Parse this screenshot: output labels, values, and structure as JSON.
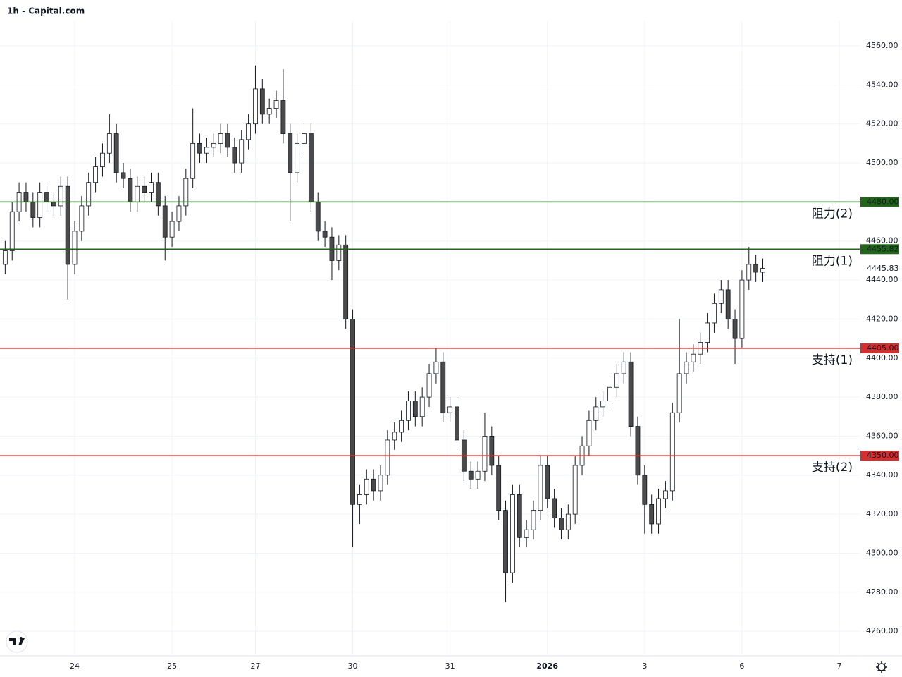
{
  "chart_data": {
    "type": "candlestick",
    "title": "1h - Capital.com",
    "categories": [
      null,
      null,
      null,
      null,
      null,
      null,
      null,
      null,
      null,
      null,
      "24",
      null,
      null,
      null,
      null,
      null,
      null,
      null,
      null,
      null,
      null,
      null,
      null,
      null,
      "25",
      null,
      null,
      null,
      null,
      null,
      null,
      null,
      null,
      null,
      null,
      null,
      "27",
      null,
      null,
      null,
      null,
      null,
      null,
      null,
      null,
      null,
      null,
      null,
      null,
      null,
      "30",
      null,
      null,
      null,
      null,
      null,
      null,
      null,
      null,
      null,
      null,
      null,
      null,
      null,
      "31",
      null,
      null,
      null,
      null,
      null,
      null,
      null,
      null,
      null,
      null,
      null,
      null,
      null,
      "2026",
      null,
      null,
      null,
      null,
      null,
      null,
      null,
      null,
      null,
      null,
      null,
      null,
      null,
      "3",
      null,
      null,
      null,
      null,
      null,
      null,
      null,
      null,
      null,
      null,
      null,
      null,
      null,
      "6",
      null,
      null,
      null,
      null,
      null,
      null,
      null,
      null,
      null,
      null,
      null,
      null,
      null,
      "7"
    ],
    "open": [
      4448,
      4455,
      4475,
      4485,
      4480,
      4472,
      4485,
      4480,
      4478,
      4488,
      4448,
      4465,
      4478,
      4490,
      4498,
      4505,
      4515,
      4495,
      4492,
      4480,
      4488,
      4485,
      4490,
      4478,
      4462,
      4470,
      4478,
      4492,
      4510,
      4505,
      4508,
      4510,
      4515,
      4508,
      4500,
      4512,
      4520,
      4538,
      4525,
      4528,
      4532,
      4515,
      4495,
      4510,
      4515,
      4480,
      4465,
      4462,
      4450,
      4458,
      4420,
      4325,
      4330,
      4338,
      4332,
      4340,
      4358,
      4362,
      4368,
      4378,
      4370,
      4380,
      4392,
      4398,
      4372,
      4375,
      4358,
      4342,
      4338,
      4342,
      4360,
      4345,
      4322,
      4290,
      4330,
      4308,
      4312,
      4322,
      4345,
      4328,
      4318,
      4312,
      4320,
      4345,
      4355,
      4368,
      4375,
      4378,
      4385,
      4392,
      4398,
      4365,
      4340,
      4325,
      4315,
      4328,
      4332,
      4372,
      4392,
      4398,
      4402,
      4408,
      4418,
      4428,
      4435,
      4420,
      4410,
      4440,
      4448,
      4444,
      null,
      null,
      null,
      null,
      null,
      null,
      null,
      null,
      null,
      null,
      null
    ],
    "high": [
      4460,
      4480,
      4490,
      4490,
      4485,
      4490,
      4490,
      4485,
      4493,
      4493,
      4470,
      4483,
      4495,
      4503,
      4510,
      4525,
      4520,
      4500,
      4497,
      4493,
      4493,
      4495,
      4495,
      4483,
      4475,
      4483,
      4497,
      4528,
      4515,
      4513,
      4515,
      4520,
      4520,
      4513,
      4517,
      4525,
      4550,
      4543,
      4533,
      4537,
      4548,
      4520,
      4515,
      4520,
      4520,
      4485,
      4470,
      4467,
      4463,
      4463,
      4425,
      4335,
      4343,
      4343,
      4345,
      4363,
      4367,
      4373,
      4383,
      4383,
      4385,
      4397,
      4405,
      4403,
      4380,
      4380,
      4363,
      4347,
      4347,
      4372,
      4365,
      4350,
      4327,
      4335,
      4335,
      4317,
      4327,
      4350,
      4350,
      4333,
      4323,
      4325,
      4350,
      4360,
      4373,
      4380,
      4383,
      4390,
      4397,
      4403,
      4403,
      4370,
      4345,
      4330,
      4333,
      4337,
      4377,
      4420,
      4403,
      4407,
      4413,
      4423,
      4433,
      4440,
      4440,
      4425,
      4445,
      4457,
      4453,
      4451,
      null,
      null,
      null,
      null,
      null,
      null,
      null,
      null,
      null,
      null,
      null
    ],
    "low": [
      4443,
      4450,
      4470,
      4475,
      4467,
      4467,
      4475,
      4473,
      4473,
      4430,
      4443,
      4460,
      4473,
      4485,
      4493,
      4500,
      4490,
      4487,
      4475,
      4475,
      4480,
      4480,
      4473,
      4450,
      4457,
      4465,
      4473,
      4487,
      4500,
      4500,
      4503,
      4505,
      4503,
      4495,
      4495,
      4507,
      4515,
      4520,
      4520,
      4523,
      4510,
      4470,
      4490,
      4505,
      4475,
      4460,
      4457,
      4440,
      4445,
      4415,
      4303,
      4315,
      4325,
      4327,
      4327,
      4335,
      4353,
      4357,
      4363,
      4365,
      4365,
      4375,
      4387,
      4367,
      4367,
      4353,
      4337,
      4333,
      4333,
      4337,
      4340,
      4317,
      4275,
      4285,
      4303,
      4303,
      4307,
      4317,
      4323,
      4313,
      4307,
      4307,
      4315,
      4340,
      4350,
      4363,
      4370,
      4373,
      4380,
      4387,
      4360,
      4335,
      4310,
      4310,
      4310,
      4323,
      4327,
      4367,
      4387,
      4393,
      4397,
      4403,
      4413,
      4423,
      4415,
      4397,
      4405,
      4435,
      4439,
      4439,
      null,
      null,
      null,
      null,
      null,
      null,
      null,
      null,
      null,
      null,
      null
    ],
    "close": [
      4455,
      4475,
      4485,
      4480,
      4472,
      4485,
      4480,
      4478,
      4488,
      4448,
      4465,
      4478,
      4490,
      4498,
      4505,
      4515,
      4495,
      4492,
      4480,
      4488,
      4485,
      4490,
      4478,
      4462,
      4470,
      4478,
      4492,
      4510,
      4505,
      4508,
      4510,
      4515,
      4508,
      4500,
      4512,
      4520,
      4538,
      4525,
      4528,
      4532,
      4515,
      4495,
      4510,
      4515,
      4480,
      4465,
      4462,
      4450,
      4458,
      4420,
      4325,
      4330,
      4338,
      4332,
      4340,
      4358,
      4362,
      4368,
      4378,
      4370,
      4380,
      4392,
      4398,
      4372,
      4375,
      4358,
      4342,
      4338,
      4342,
      4360,
      4345,
      4322,
      4290,
      4330,
      4308,
      4312,
      4322,
      4345,
      4328,
      4318,
      4312,
      4320,
      4345,
      4355,
      4368,
      4375,
      4378,
      4385,
      4392,
      4398,
      4365,
      4340,
      4325,
      4315,
      4328,
      4332,
      4372,
      4392,
      4398,
      4402,
      4408,
      4418,
      4428,
      4435,
      4420,
      4410,
      4440,
      4448,
      4444,
      4446,
      null,
      null,
      null,
      null,
      null,
      null,
      null,
      null,
      null,
      null,
      null
    ],
    "up_color": "#ffffff",
    "down_color": "#4a4a4a",
    "ylim": [
      4247.4,
      4583.5
    ],
    "yticks": [
      {
        "value": 4260,
        "label": "4260.00"
      },
      {
        "value": 4280,
        "label": "4280.00"
      },
      {
        "value": 4300,
        "label": "4300.00"
      },
      {
        "value": 4320,
        "label": "4320.00"
      },
      {
        "value": 4340,
        "label": "4340.00"
      },
      {
        "value": 4360,
        "label": "4360.00"
      },
      {
        "value": 4380,
        "label": "4380.00"
      },
      {
        "value": 4400,
        "label": "4400.00"
      },
      {
        "value": 4420,
        "label": "4420.00"
      },
      {
        "value": 4440,
        "label": "4440.00"
      },
      {
        "value": 4460,
        "label": "4460.00"
      },
      {
        "value": 4480,
        "label": "4480.00"
      },
      {
        "value": 4500,
        "label": "4500.00"
      },
      {
        "value": 4520,
        "label": "4520.00"
      },
      {
        "value": 4540,
        "label": "4540.00"
      },
      {
        "value": 4560,
        "label": "4560.00"
      }
    ],
    "grid": true,
    "levels": [
      {
        "value": 4480,
        "label": "4480.00",
        "name": "阻力(2)",
        "color": "#22651a"
      },
      {
        "value": 4455.82,
        "label": "4455.82",
        "name": "阻力(1)",
        "color": "#22651a"
      },
      {
        "value": 4405,
        "label": "4405.00",
        "name": "支持(1)",
        "color": "#d32f2f"
      },
      {
        "value": 4350,
        "label": "4350.00",
        "name": "支持(2)",
        "color": "#d32f2f"
      }
    ],
    "last_price": {
      "value": 4445.83,
      "label": "4445.83"
    }
  }
}
